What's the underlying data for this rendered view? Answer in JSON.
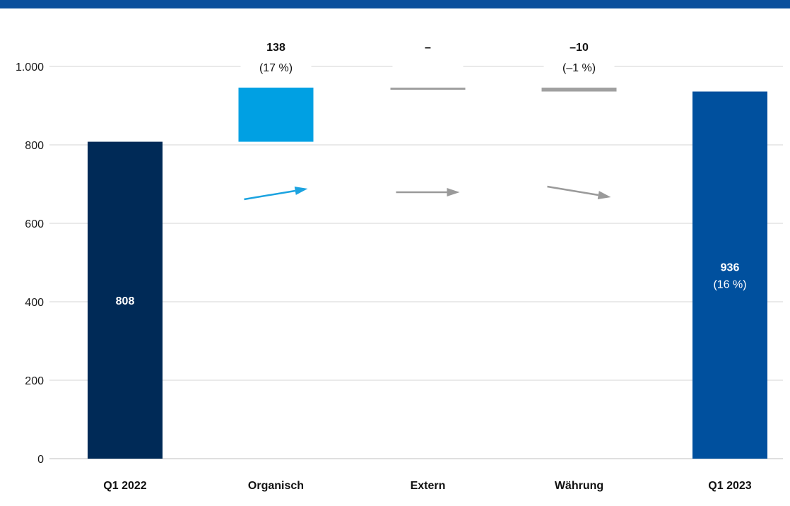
{
  "chart_data": {
    "type": "bar",
    "subtype": "waterfall",
    "categories": [
      "Q1 2022",
      "Organisch",
      "Extern",
      "Währung",
      "Q1 2023"
    ],
    "ylim": [
      0,
      1000
    ],
    "yticks": [
      0,
      200,
      400,
      600,
      800,
      1000
    ],
    "ytick_labels": [
      "0",
      "200",
      "400",
      "600",
      "800",
      "1.000"
    ],
    "grid": true,
    "bars": [
      {
        "category": "Q1 2022",
        "kind": "total",
        "start": 0,
        "end": 808,
        "color": "#002a57",
        "label": "808",
        "sublabel": "",
        "label_position": "inside",
        "label_color": "#ffffff"
      },
      {
        "category": "Organisch",
        "kind": "delta",
        "start": 808,
        "end": 946,
        "color": "#00a0e3",
        "label": "138",
        "sublabel": "(17 %)",
        "label_position": "top",
        "label_color": "#111111",
        "arrow": "up",
        "arrow_color": "#1ba3e0"
      },
      {
        "category": "Extern",
        "kind": "delta",
        "start": 946,
        "end": 946,
        "color": "#a0a0a0",
        "label": "–",
        "sublabel": "",
        "label_position": "top",
        "label_color": "#111111",
        "arrow": "flat",
        "arrow_color": "#9a9a9a"
      },
      {
        "category": "Währung",
        "kind": "delta",
        "start": 946,
        "end": 936,
        "color": "#a0a0a0",
        "label": "–10",
        "sublabel": "(–1 %)",
        "label_position": "top",
        "label_color": "#111111",
        "arrow": "down",
        "arrow_color": "#9a9a9a"
      },
      {
        "category": "Q1 2023",
        "kind": "total",
        "start": 0,
        "end": 936,
        "color": "#00509e",
        "label": "936",
        "sublabel": "(16 %)",
        "label_position": "inside",
        "label_color": "#ffffff"
      }
    ],
    "category_label_colors": [
      "#111111",
      "#111111",
      "#111111",
      "#111111",
      "#0b4f9c"
    ]
  }
}
